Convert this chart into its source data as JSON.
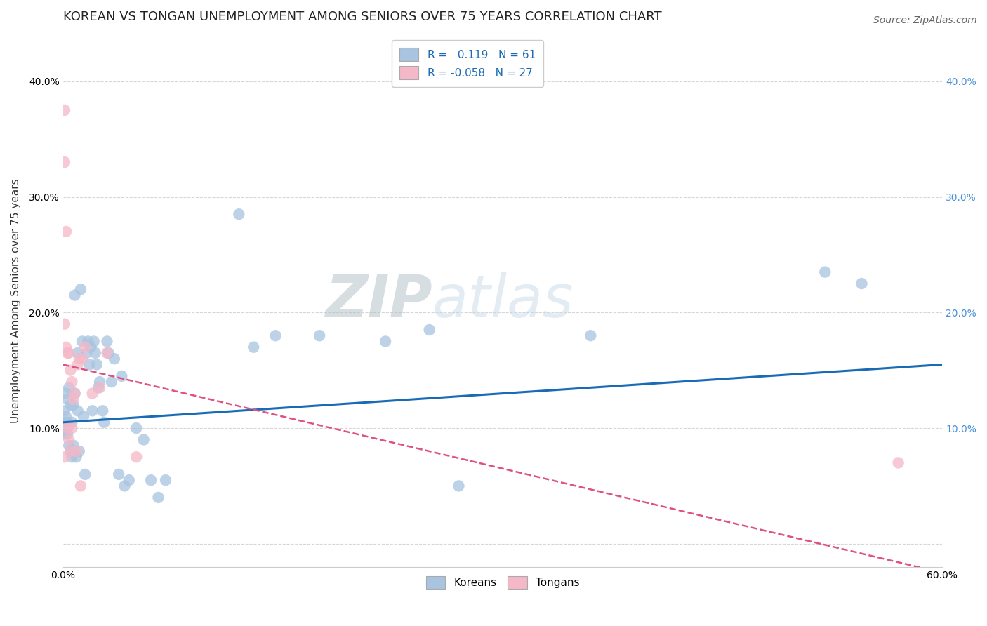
{
  "title": "KOREAN VS TONGAN UNEMPLOYMENT AMONG SENIORS OVER 75 YEARS CORRELATION CHART",
  "source": "Source: ZipAtlas.com",
  "ylabel": "Unemployment Among Seniors over 75 years",
  "xlabel": "",
  "xlim": [
    0.0,
    0.6
  ],
  "ylim": [
    -0.02,
    0.44
  ],
  "xticks": [
    0.0,
    0.1,
    0.2,
    0.3,
    0.4,
    0.5,
    0.6
  ],
  "yticks": [
    0.0,
    0.1,
    0.2,
    0.3,
    0.4
  ],
  "xticklabels": [
    "0.0%",
    "",
    "",
    "",
    "",
    "",
    "60.0%"
  ],
  "yticklabels": [
    "",
    "10.0%",
    "20.0%",
    "30.0%",
    "40.0%"
  ],
  "right_yticklabels": [
    "10.0%",
    "20.0%",
    "30.0%",
    "40.0%"
  ],
  "right_yticks": [
    0.1,
    0.2,
    0.3,
    0.4
  ],
  "korean_R": "0.119",
  "korean_N": "61",
  "tongan_R": "-0.058",
  "tongan_N": "27",
  "korean_color": "#a8c4e0",
  "tongan_color": "#f4b8c8",
  "korean_line_color": "#1a6bb5",
  "tongan_line_color": "#e05080",
  "watermark_zip": "ZIP",
  "watermark_atlas": "atlas",
  "legend_labels": [
    "Koreans",
    "Tongans"
  ],
  "korean_scatter_x": [
    0.001,
    0.001,
    0.001,
    0.002,
    0.002,
    0.003,
    0.003,
    0.003,
    0.004,
    0.004,
    0.005,
    0.005,
    0.006,
    0.006,
    0.007,
    0.007,
    0.008,
    0.008,
    0.009,
    0.01,
    0.01,
    0.011,
    0.012,
    0.013,
    0.014,
    0.015,
    0.016,
    0.017,
    0.018,
    0.019,
    0.02,
    0.021,
    0.022,
    0.023,
    0.024,
    0.025,
    0.027,
    0.028,
    0.03,
    0.031,
    0.033,
    0.035,
    0.038,
    0.04,
    0.042,
    0.045,
    0.05,
    0.055,
    0.06,
    0.065,
    0.07,
    0.12,
    0.13,
    0.145,
    0.175,
    0.22,
    0.25,
    0.27,
    0.36,
    0.52,
    0.545
  ],
  "korean_scatter_y": [
    0.115,
    0.105,
    0.095,
    0.13,
    0.11,
    0.125,
    0.105,
    0.095,
    0.135,
    0.085,
    0.12,
    0.08,
    0.105,
    0.075,
    0.12,
    0.085,
    0.215,
    0.13,
    0.075,
    0.165,
    0.115,
    0.08,
    0.22,
    0.175,
    0.11,
    0.06,
    0.165,
    0.175,
    0.155,
    0.17,
    0.115,
    0.175,
    0.165,
    0.155,
    0.135,
    0.14,
    0.115,
    0.105,
    0.175,
    0.165,
    0.14,
    0.16,
    0.06,
    0.145,
    0.05,
    0.055,
    0.1,
    0.09,
    0.055,
    0.04,
    0.055,
    0.285,
    0.17,
    0.18,
    0.18,
    0.175,
    0.185,
    0.05,
    0.18,
    0.235,
    0.225
  ],
  "tongan_scatter_x": [
    0.001,
    0.001,
    0.001,
    0.001,
    0.002,
    0.002,
    0.003,
    0.003,
    0.004,
    0.004,
    0.005,
    0.005,
    0.006,
    0.006,
    0.007,
    0.008,
    0.009,
    0.01,
    0.011,
    0.012,
    0.013,
    0.015,
    0.02,
    0.025,
    0.03,
    0.05,
    0.57
  ],
  "tongan_scatter_y": [
    0.375,
    0.33,
    0.19,
    0.075,
    0.27,
    0.17,
    0.165,
    0.1,
    0.165,
    0.09,
    0.15,
    0.08,
    0.14,
    0.1,
    0.125,
    0.13,
    0.08,
    0.155,
    0.16,
    0.05,
    0.16,
    0.17,
    0.13,
    0.135,
    0.165,
    0.075,
    0.07
  ],
  "korean_line_x0": 0.0,
  "korean_line_y0": 0.105,
  "korean_line_x1": 0.6,
  "korean_line_y1": 0.155,
  "tongan_line_x0": 0.0,
  "tongan_line_y0": 0.155,
  "tongan_line_x1": 0.6,
  "tongan_line_y1": -0.025,
  "grid_color": "#cccccc",
  "bg_color": "#ffffff",
  "title_fontsize": 13,
  "tick_fontsize": 10,
  "label_fontsize": 11,
  "source_fontsize": 10
}
